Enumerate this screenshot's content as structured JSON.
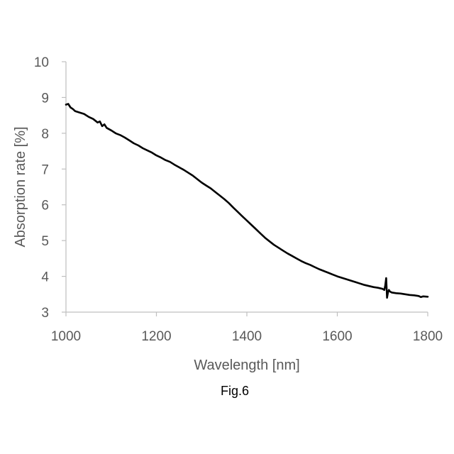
{
  "chart_data": {
    "type": "line",
    "title": "",
    "caption": "Fig.6",
    "xlabel": "Wavelength [nm]",
    "ylabel": "Absorption rate [%]",
    "xlim": [
      1000,
      1800
    ],
    "ylim": [
      3,
      10
    ],
    "xticks": [
      1000,
      1200,
      1400,
      1600,
      1800
    ],
    "yticks": [
      3,
      4,
      5,
      6,
      7,
      8,
      9,
      10
    ],
    "grid": false,
    "legend": "none",
    "series_color": "#000000",
    "axis_color": "#bfbfbf",
    "label_color": "#595959",
    "series": [
      {
        "x": [
          1000,
          1005,
          1010,
          1015,
          1020,
          1030,
          1040,
          1050,
          1060,
          1070,
          1075,
          1080,
          1085,
          1090,
          1100,
          1110,
          1120,
          1130,
          1140,
          1150,
          1160,
          1170,
          1180,
          1190,
          1200,
          1210,
          1220,
          1230,
          1240,
          1250,
          1260,
          1270,
          1280,
          1290,
          1300,
          1310,
          1320,
          1330,
          1340,
          1350,
          1360,
          1370,
          1380,
          1390,
          1400,
          1410,
          1420,
          1430,
          1440,
          1450,
          1460,
          1470,
          1480,
          1490,
          1500,
          1510,
          1520,
          1530,
          1540,
          1550,
          1560,
          1570,
          1580,
          1590,
          1600,
          1610,
          1620,
          1630,
          1640,
          1650,
          1660,
          1670,
          1680,
          1690,
          1700,
          1704,
          1706,
          1708,
          1710,
          1712,
          1714,
          1716,
          1720,
          1730,
          1740,
          1750,
          1760,
          1770,
          1780,
          1785,
          1790,
          1800
        ],
        "values": [
          8.8,
          8.82,
          8.72,
          8.68,
          8.62,
          8.58,
          8.54,
          8.46,
          8.4,
          8.3,
          8.33,
          8.2,
          8.25,
          8.15,
          8.08,
          8.0,
          7.95,
          7.88,
          7.8,
          7.72,
          7.66,
          7.58,
          7.52,
          7.46,
          7.38,
          7.32,
          7.25,
          7.2,
          7.12,
          7.05,
          6.98,
          6.9,
          6.82,
          6.72,
          6.62,
          6.54,
          6.46,
          6.36,
          6.26,
          6.16,
          6.05,
          5.92,
          5.8,
          5.68,
          5.56,
          5.44,
          5.32,
          5.2,
          5.08,
          4.98,
          4.88,
          4.8,
          4.72,
          4.64,
          4.57,
          4.5,
          4.43,
          4.37,
          4.32,
          4.26,
          4.2,
          4.15,
          4.1,
          4.05,
          4.0,
          3.96,
          3.92,
          3.88,
          3.84,
          3.8,
          3.76,
          3.73,
          3.7,
          3.68,
          3.65,
          3.62,
          3.75,
          3.95,
          3.4,
          3.55,
          3.62,
          3.58,
          3.55,
          3.53,
          3.52,
          3.5,
          3.48,
          3.47,
          3.45,
          3.42,
          3.44,
          3.43
        ]
      }
    ]
  }
}
